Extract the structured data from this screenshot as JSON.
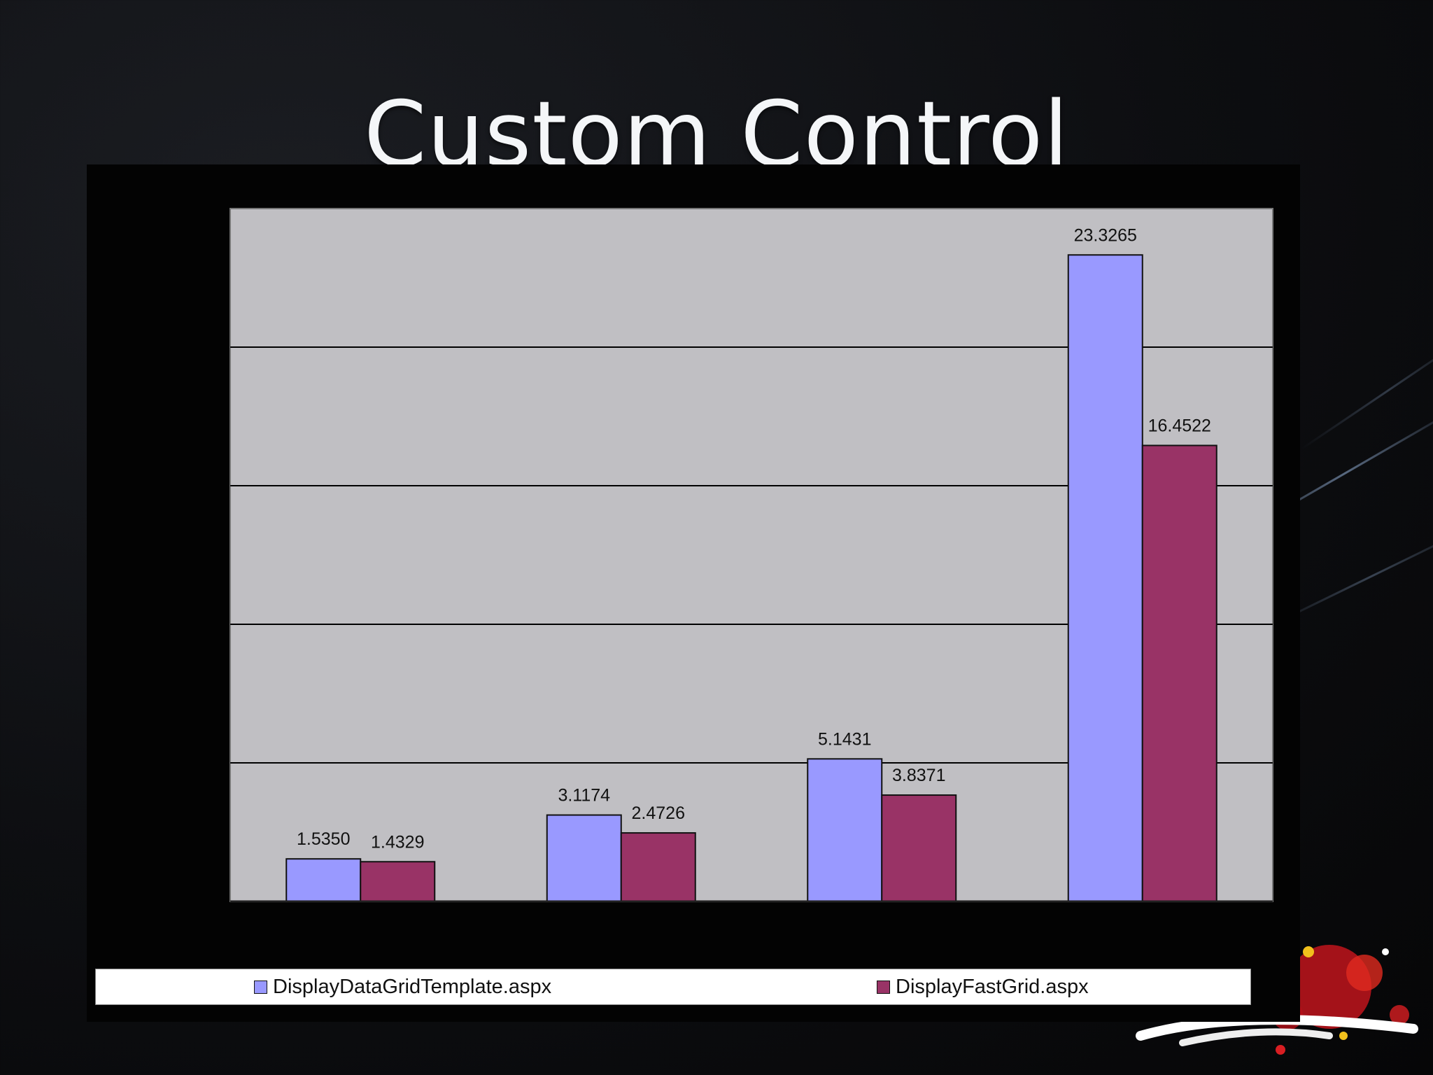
{
  "slide": {
    "title": "Custom Control"
  },
  "colors": {
    "plot_background": "#c0bfc3",
    "series_1": "#9999ff",
    "series_2": "#993366",
    "gridline": "#000000"
  },
  "chart_data": {
    "type": "bar",
    "title": "",
    "xlabel": "",
    "ylabel": "",
    "categories": [
      "",
      "",
      "",
      ""
    ],
    "series": [
      {
        "name": "DisplayDataGridTemplate.aspx",
        "values": [
          1.535,
          3.1174,
          5.1431,
          23.3265
        ],
        "labels": [
          "1.5350",
          "3.1174",
          "5.1431",
          "23.3265"
        ]
      },
      {
        "name": "DisplayFastGrid.aspx",
        "values": [
          1.4329,
          2.4726,
          3.8371,
          16.4522
        ],
        "labels": [
          "1.4329",
          "2.4726",
          "3.8371",
          "16.4522"
        ]
      }
    ],
    "ylim": [
      0,
      25
    ],
    "gridlines": [
      5,
      10,
      15,
      20
    ],
    "grid": true,
    "legend": "bottom"
  }
}
